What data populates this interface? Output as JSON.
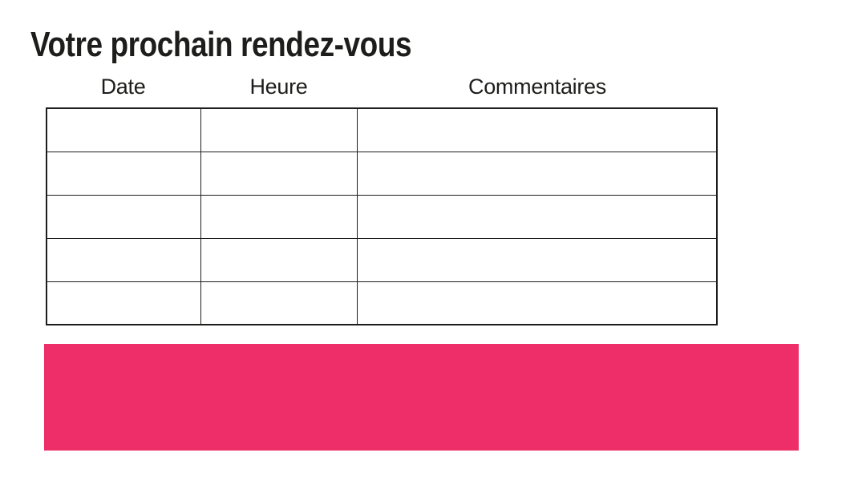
{
  "page": {
    "title": "Votre prochain rendez-vous",
    "background_color": "#ffffff",
    "text_color": "#1d1d1b"
  },
  "table": {
    "columns": [
      {
        "label": "Date"
      },
      {
        "label": "Heure"
      },
      {
        "label": "Commentaires"
      }
    ],
    "rows": [
      [
        "",
        "",
        ""
      ],
      [
        "",
        "",
        ""
      ],
      [
        "",
        "",
        ""
      ],
      [
        "",
        "",
        ""
      ],
      [
        "",
        "",
        ""
      ]
    ],
    "border_color": "#1d1d1b"
  },
  "banner": {
    "text": "",
    "color": "#ED2E68"
  }
}
